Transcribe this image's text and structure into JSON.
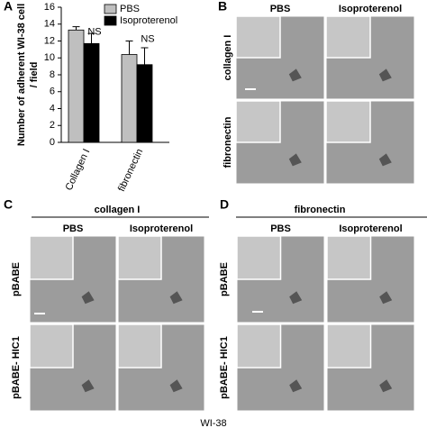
{
  "chart_data": {
    "type": "bar",
    "ylabel": [
      "Number of adherent WI-38 cell",
      "/ field"
    ],
    "categories": [
      "Collagen I",
      "fibronectin"
    ],
    "series": [
      {
        "name": "PBS",
        "color": "#bfbfbf",
        "values": [
          13.3,
          10.4
        ],
        "errors": [
          0.4,
          1.6
        ]
      },
      {
        "name": "Isoproterenol",
        "color": "#000000",
        "values": [
          11.7,
          9.2
        ],
        "errors": [
          1.2,
          2.0
        ]
      }
    ],
    "annotations": [
      "NS",
      "NS"
    ],
    "ylim": [
      0,
      16
    ],
    "yticks": [
      0,
      2,
      4,
      6,
      8,
      10,
      12,
      14,
      16
    ],
    "legend": "top-right"
  },
  "panel_labels": [
    "A",
    "B",
    "C",
    "D"
  ],
  "panel_b": {
    "columns": [
      "PBS",
      "Isoproterenol"
    ],
    "rows": [
      "collagen I",
      "fibronectin"
    ]
  },
  "panel_c": {
    "title": "collagen I",
    "columns": [
      "PBS",
      "Isoproterenol"
    ],
    "rows": [
      "pBABE",
      "pBABE- HIC1"
    ]
  },
  "panel_d": {
    "title": "fibronectin",
    "columns": [
      "PBS",
      "Isoproterenol"
    ],
    "rows": [
      "pBABE",
      "pBABE- HIC1"
    ]
  },
  "footer": "WI-38"
}
